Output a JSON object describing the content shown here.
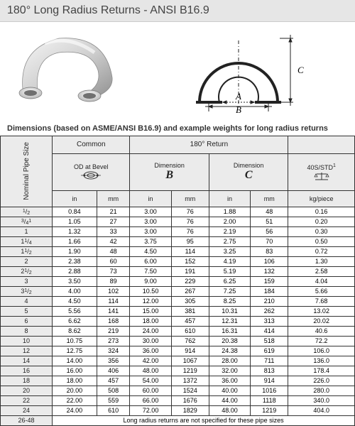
{
  "title": "180° Long Radius Returns - ANSI B16.9",
  "caption": "Dimensions (based on ASME/ANSI B16.9) and example weights for long radius returns",
  "headers": {
    "nominal": "Nominal\nPipe Size",
    "common": "Common",
    "return": "180° Return",
    "od": "OD at Bevel",
    "dimB": "Dimension",
    "dimC": "Dimension",
    "weight": "40S/STD",
    "in": "in",
    "mm": "mm",
    "kg": "kg/piece"
  },
  "columns": [
    "size_html",
    "od_in",
    "od_mm",
    "b_in",
    "b_mm",
    "c_in",
    "c_mm",
    "kg"
  ],
  "rows": [
    {
      "size_html": "<span class=frac><sup>1</sup>/<sub>2</sub></span>",
      "od_in": "0.84",
      "od_mm": "21",
      "b_in": "3.00",
      "b_mm": "76",
      "c_in": "1.88",
      "c_mm": "48",
      "kg": "0.16"
    },
    {
      "size_html": "<span class=frac><sup>3</sup>/<sub>4</sub><sup>1</sup></span>",
      "od_in": "1.05",
      "od_mm": "27",
      "b_in": "3.00",
      "b_mm": "76",
      "c_in": "2.00",
      "c_mm": "51",
      "kg": "0.20"
    },
    {
      "size_html": "1",
      "od_in": "1.32",
      "od_mm": "33",
      "b_in": "3.00",
      "b_mm": "76",
      "c_in": "2.19",
      "c_mm": "56",
      "kg": "0.30"
    },
    {
      "size_html": "1<span class=frac><sup>1</sup>/<sub>4</sub></span>",
      "od_in": "1.66",
      "od_mm": "42",
      "b_in": "3.75",
      "b_mm": "95",
      "c_in": "2.75",
      "c_mm": "70",
      "kg": "0.50"
    },
    {
      "size_html": "1<span class=frac><sup>1</sup>/<sub>2</sub></span>",
      "od_in": "1.90",
      "od_mm": "48",
      "b_in": "4.50",
      "b_mm": "114",
      "c_in": "3.25",
      "c_mm": "83",
      "kg": "0.72"
    },
    {
      "size_html": "2",
      "od_in": "2.38",
      "od_mm": "60",
      "b_in": "6.00",
      "b_mm": "152",
      "c_in": "4.19",
      "c_mm": "106",
      "kg": "1.30"
    },
    {
      "size_html": "2<span class=frac><sup>1</sup>/<sub>2</sub></span>",
      "od_in": "2.88",
      "od_mm": "73",
      "b_in": "7.50",
      "b_mm": "191",
      "c_in": "5.19",
      "c_mm": "132",
      "kg": "2.58"
    },
    {
      "size_html": "3",
      "od_in": "3.50",
      "od_mm": "89",
      "b_in": "9.00",
      "b_mm": "229",
      "c_in": "6.25",
      "c_mm": "159",
      "kg": "4.04"
    },
    {
      "size_html": "3<span class=frac><sup>1</sup>/<sub>2</sub></span>",
      "od_in": "4.00",
      "od_mm": "102",
      "b_in": "10.50",
      "b_mm": "267",
      "c_in": "7.25",
      "c_mm": "184",
      "kg": "5.66"
    },
    {
      "size_html": "4",
      "od_in": "4.50",
      "od_mm": "114",
      "b_in": "12.00",
      "b_mm": "305",
      "c_in": "8.25",
      "c_mm": "210",
      "kg": "7.68"
    },
    {
      "size_html": "5",
      "od_in": "5.56",
      "od_mm": "141",
      "b_in": "15.00",
      "b_mm": "381",
      "c_in": "10.31",
      "c_mm": "262",
      "kg": "13.02"
    },
    {
      "size_html": "6",
      "od_in": "6.62",
      "od_mm": "168",
      "b_in": "18.00",
      "b_mm": "457",
      "c_in": "12.31",
      "c_mm": "313",
      "kg": "20.02"
    },
    {
      "size_html": "8",
      "od_in": "8.62",
      "od_mm": "219",
      "b_in": "24.00",
      "b_mm": "610",
      "c_in": "16.31",
      "c_mm": "414",
      "kg": "40.6"
    },
    {
      "size_html": "10",
      "od_in": "10.75",
      "od_mm": "273",
      "b_in": "30.00",
      "b_mm": "762",
      "c_in": "20.38",
      "c_mm": "518",
      "kg": "72.2"
    },
    {
      "size_html": "12",
      "od_in": "12.75",
      "od_mm": "324",
      "b_in": "36.00",
      "b_mm": "914",
      "c_in": "24.38",
      "c_mm": "619",
      "kg": "106.0"
    },
    {
      "size_html": "14",
      "od_in": "14.00",
      "od_mm": "356",
      "b_in": "42.00",
      "b_mm": "1067",
      "c_in": "28.00",
      "c_mm": "711",
      "kg": "136.0"
    },
    {
      "size_html": "16",
      "od_in": "16.00",
      "od_mm": "406",
      "b_in": "48.00",
      "b_mm": "1219",
      "c_in": "32.00",
      "c_mm": "813",
      "kg": "178.4"
    },
    {
      "size_html": "18",
      "od_in": "18.00",
      "od_mm": "457",
      "b_in": "54.00",
      "b_mm": "1372",
      "c_in": "36.00",
      "c_mm": "914",
      "kg": "226.0"
    },
    {
      "size_html": "20",
      "od_in": "20.00",
      "od_mm": "508",
      "b_in": "60.00",
      "b_mm": "1524",
      "c_in": "40.00",
      "c_mm": "1016",
      "kg": "280.0"
    },
    {
      "size_html": "22",
      "od_in": "22.00",
      "od_mm": "559",
      "b_in": "66.00",
      "b_mm": "1676",
      "c_in": "44.00",
      "c_mm": "1118",
      "kg": "340.0"
    },
    {
      "size_html": "24",
      "od_in": "24.00",
      "od_mm": "610",
      "b_in": "72.00",
      "b_mm": "1829",
      "c_in": "48.00",
      "c_mm": "1219",
      "kg": "404.0"
    }
  ],
  "footer": {
    "size": "26-48",
    "note": "Long radius returns are not specified for these pipe sizes"
  },
  "colors": {
    "header_bg": "#ebebeb",
    "border": "#333333",
    "text": "#222222"
  }
}
